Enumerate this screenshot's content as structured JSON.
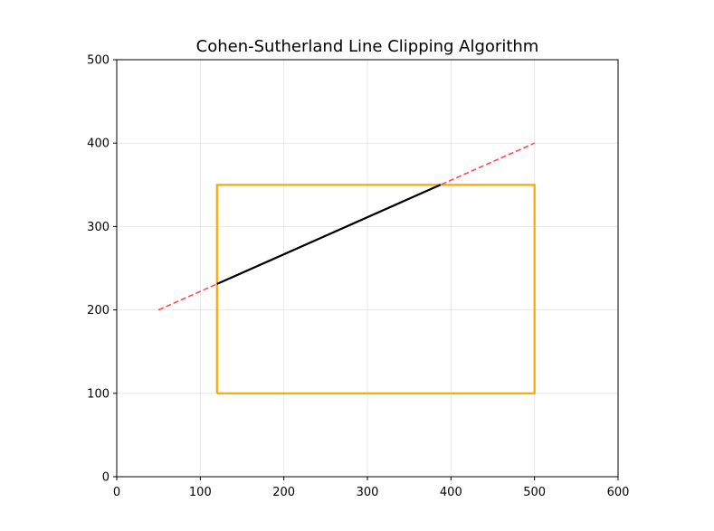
{
  "chart_data": {
    "type": "line",
    "title": "Cohen-Sutherland Line Clipping Algorithm",
    "xlabel": "",
    "ylabel": "",
    "xlim": [
      0,
      600
    ],
    "ylim": [
      0,
      500
    ],
    "xticks": [
      0,
      100,
      200,
      300,
      400,
      500,
      600
    ],
    "yticks": [
      0,
      100,
      200,
      300,
      400,
      500
    ],
    "grid": true,
    "legend": "none",
    "series": [
      {
        "role": "clip-window",
        "color": "#ffa500",
        "style": "solid",
        "x": [
          120,
          500,
          500,
          120,
          120
        ],
        "y": [
          100,
          100,
          350,
          350,
          100
        ]
      },
      {
        "role": "original-line",
        "color": "#ff4d4d",
        "style": "dashed",
        "x": [
          50,
          500
        ],
        "y": [
          200,
          400
        ]
      },
      {
        "role": "clipped-line",
        "color": "#000000",
        "style": "solid",
        "x": [
          120,
          387.5
        ],
        "y": [
          231.1,
          350
        ]
      }
    ]
  }
}
